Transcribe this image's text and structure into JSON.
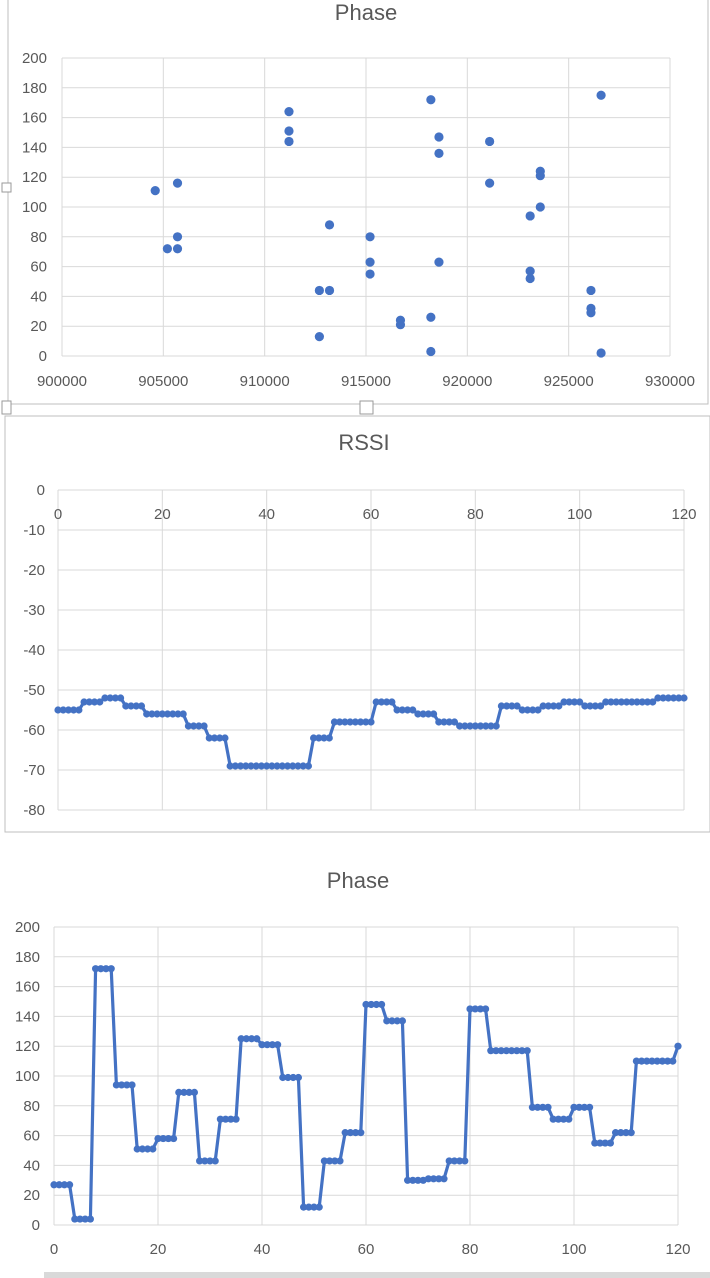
{
  "chart_data": [
    {
      "type": "scatter",
      "title": "Phase",
      "xlim": [
        900000,
        930000
      ],
      "ylim": [
        0,
        200
      ],
      "x_ticks": [
        "900000",
        "905000",
        "910000",
        "915000",
        "920000",
        "925000",
        "930000"
      ],
      "y_ticks": [
        "0",
        "20",
        "40",
        "60",
        "80",
        "100",
        "120",
        "140",
        "160",
        "180",
        "200"
      ],
      "grid": true,
      "color": "#4472c4",
      "points": [
        [
          904600,
          111
        ],
        [
          905200,
          72
        ],
        [
          905700,
          72
        ],
        [
          905700,
          80
        ],
        [
          905700,
          116
        ],
        [
          911200,
          164
        ],
        [
          911200,
          151
        ],
        [
          911200,
          144
        ],
        [
          912700,
          44
        ],
        [
          913200,
          44
        ],
        [
          912700,
          13
        ],
        [
          913200,
          88
        ],
        [
          915200,
          80
        ],
        [
          915200,
          63
        ],
        [
          915200,
          55
        ],
        [
          916700,
          24
        ],
        [
          916700,
          21
        ],
        [
          918200,
          172
        ],
        [
          918200,
          26
        ],
        [
          918200,
          3
        ],
        [
          918600,
          147
        ],
        [
          918600,
          136
        ],
        [
          918600,
          63
        ],
        [
          921100,
          144
        ],
        [
          921100,
          116
        ],
        [
          923100,
          94
        ],
        [
          923100,
          57
        ],
        [
          923100,
          52
        ],
        [
          923600,
          124
        ],
        [
          923600,
          121
        ],
        [
          923600,
          100
        ],
        [
          926100,
          44
        ],
        [
          926100,
          32
        ],
        [
          926100,
          29
        ],
        [
          926600,
          175
        ],
        [
          926600,
          2
        ]
      ]
    },
    {
      "type": "line",
      "title": "RSSI",
      "xlim": [
        0,
        120
      ],
      "ylim": [
        -80,
        0
      ],
      "x_ticks": [
        "0",
        "20",
        "40",
        "60",
        "80",
        "100",
        "120"
      ],
      "y_ticks": [
        "0",
        "-10",
        "-20",
        "-30",
        "-40",
        "-50",
        "-60",
        "-70",
        "-80"
      ],
      "grid": true,
      "color": "#4472c4",
      "x": [
        0,
        1,
        2,
        3,
        4,
        5,
        6,
        7,
        8,
        9,
        10,
        11,
        12,
        13,
        14,
        15,
        16,
        17,
        18,
        19,
        20,
        21,
        22,
        23,
        24,
        25,
        26,
        27,
        28,
        29,
        30,
        31,
        32,
        33,
        34,
        35,
        36,
        37,
        38,
        39,
        40,
        41,
        42,
        43,
        44,
        45,
        46,
        47,
        48,
        49,
        50,
        51,
        52,
        53,
        54,
        55,
        56,
        57,
        58,
        59,
        60,
        61,
        62,
        63,
        64,
        65,
        66,
        67,
        68,
        69,
        70,
        71,
        72,
        73,
        74,
        75,
        76,
        77,
        78,
        79,
        80,
        81,
        82,
        83,
        84,
        85,
        86,
        87,
        88,
        89,
        90,
        91,
        92,
        93,
        94,
        95,
        96,
        97,
        98,
        99,
        100,
        101,
        102,
        103,
        104,
        105,
        106,
        107,
        108,
        109,
        110,
        111,
        112,
        113,
        114,
        115,
        116,
        117,
        118,
        119,
        120
      ],
      "values": [
        -55,
        -55,
        -55,
        -55,
        -55,
        -53,
        -53,
        -53,
        -53,
        -52,
        -52,
        -52,
        -52,
        -54,
        -54,
        -54,
        -54,
        -56,
        -56,
        -56,
        -56,
        -56,
        -56,
        -56,
        -56,
        -59,
        -59,
        -59,
        -59,
        -62,
        -62,
        -62,
        -62,
        -69,
        -69,
        -69,
        -69,
        -69,
        -69,
        -69,
        -69,
        -69,
        -69,
        -69,
        -69,
        -69,
        -69,
        -69,
        -69,
        -62,
        -62,
        -62,
        -62,
        -58,
        -58,
        -58,
        -58,
        -58,
        -58,
        -58,
        -58,
        -53,
        -53,
        -53,
        -53,
        -55,
        -55,
        -55,
        -55,
        -56,
        -56,
        -56,
        -56,
        -58,
        -58,
        -58,
        -58,
        -59,
        -59,
        -59,
        -59,
        -59,
        -59,
        -59,
        -59,
        -54,
        -54,
        -54,
        -54,
        -55,
        -55,
        -55,
        -55,
        -54,
        -54,
        -54,
        -54,
        -53,
        -53,
        -53,
        -53,
        -54,
        -54,
        -54,
        -54,
        -53,
        -53,
        -53,
        -53,
        -53,
        -53,
        -53,
        -53,
        -53,
        -53,
        -52,
        -52,
        -52,
        -52,
        -52,
        -52
      ]
    },
    {
      "type": "line",
      "title": "Phase",
      "xlim": [
        0,
        120
      ],
      "ylim": [
        0,
        200
      ],
      "x_ticks": [
        "0",
        "20",
        "40",
        "60",
        "80",
        "100",
        "120"
      ],
      "y_ticks": [
        "0",
        "20",
        "40",
        "60",
        "80",
        "100",
        "120",
        "140",
        "160",
        "180",
        "200"
      ],
      "grid": true,
      "color": "#4472c4",
      "x": [
        0,
        1,
        2,
        3,
        4,
        5,
        6,
        7,
        8,
        9,
        10,
        11,
        12,
        13,
        14,
        15,
        16,
        17,
        18,
        19,
        20,
        21,
        22,
        23,
        24,
        25,
        26,
        27,
        28,
        29,
        30,
        31,
        32,
        33,
        34,
        35,
        36,
        37,
        38,
        39,
        40,
        41,
        42,
        43,
        44,
        45,
        46,
        47,
        48,
        49,
        50,
        51,
        52,
        53,
        54,
        55,
        56,
        57,
        58,
        59,
        60,
        61,
        62,
        63,
        64,
        65,
        66,
        67,
        68,
        69,
        70,
        71,
        72,
        73,
        74,
        75,
        76,
        77,
        78,
        79,
        80,
        81,
        82,
        83,
        84,
        85,
        86,
        87,
        88,
        89,
        90,
        91,
        92,
        93,
        94,
        95,
        96,
        97,
        98,
        99,
        100,
        101,
        102,
        103,
        104,
        105,
        106,
        107,
        108,
        109,
        110,
        111,
        112,
        113,
        114,
        115,
        116,
        117,
        118,
        119,
        120
      ],
      "values": [
        27,
        27,
        27,
        27,
        4,
        4,
        4,
        4,
        172,
        172,
        172,
        172,
        94,
        94,
        94,
        94,
        51,
        51,
        51,
        51,
        58,
        58,
        58,
        58,
        89,
        89,
        89,
        89,
        43,
        43,
        43,
        43,
        71,
        71,
        71,
        71,
        125,
        125,
        125,
        125,
        121,
        121,
        121,
        121,
        99,
        99,
        99,
        99,
        12,
        12,
        12,
        12,
        43,
        43,
        43,
        43,
        62,
        62,
        62,
        62,
        148,
        148,
        148,
        148,
        137,
        137,
        137,
        137,
        30,
        30,
        30,
        30,
        31,
        31,
        31,
        31,
        43,
        43,
        43,
        43,
        145,
        145,
        145,
        145,
        117,
        117,
        117,
        117,
        117,
        117,
        117,
        117,
        79,
        79,
        79,
        79,
        71,
        71,
        71,
        71,
        79,
        79,
        79,
        79,
        55,
        55,
        55,
        55,
        62,
        62,
        62,
        62,
        110,
        110,
        110,
        110,
        110,
        110,
        110,
        110,
        120
      ]
    }
  ]
}
